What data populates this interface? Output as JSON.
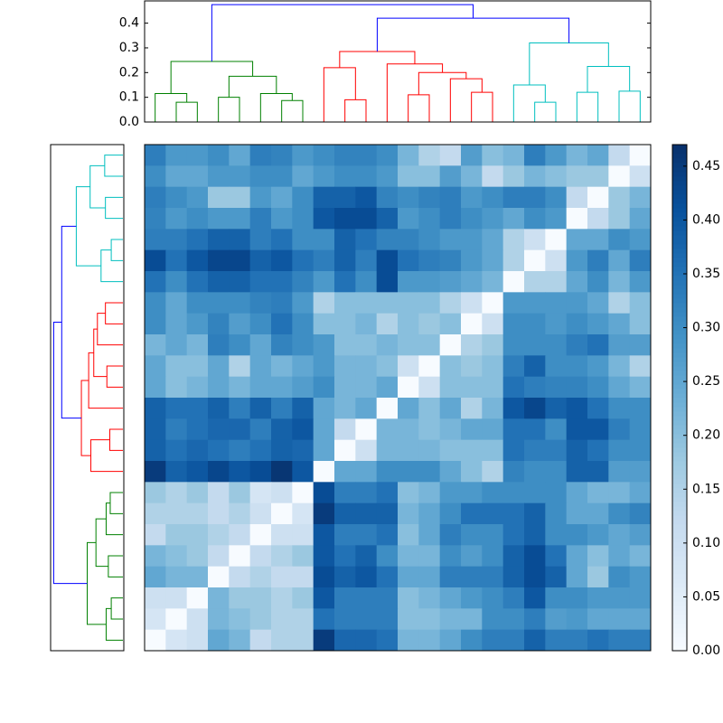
{
  "chart_data": {
    "type": "clustered-heatmap",
    "colormap": [
      "#f7fbff",
      "#deebf7",
      "#c6dbef",
      "#9ecae1",
      "#6baed6",
      "#4292c6",
      "#2171b5",
      "#08519c",
      "#08306b"
    ],
    "clim": [
      0,
      0.47
    ],
    "colorbar_ticks": [
      {
        "value": 0,
        "label": "0.00"
      },
      {
        "value": 0.05,
        "label": "0.05"
      },
      {
        "value": 0.1,
        "label": "0.10"
      },
      {
        "value": 0.15,
        "label": "0.15"
      },
      {
        "value": 0.2,
        "label": "0.20"
      },
      {
        "value": 0.25,
        "label": "0.25"
      },
      {
        "value": 0.3,
        "label": "0.30"
      },
      {
        "value": 0.35,
        "label": "0.35"
      },
      {
        "value": 0.4,
        "label": "0.40"
      },
      {
        "value": 0.45,
        "label": "0.45"
      }
    ],
    "dendrogram": {
      "ylim": [
        0,
        0.49
      ],
      "yticks": [
        {
          "value": 0,
          "label": "0.0"
        },
        {
          "value": 0.1,
          "label": "0.1"
        },
        {
          "value": 0.2,
          "label": "0.2"
        },
        {
          "value": 0.3,
          "label": "0.3"
        },
        {
          "value": 0.4,
          "label": "0.4"
        }
      ],
      "merges": [
        {
          "left": 1,
          "right": 2,
          "height": 0.08,
          "color": "#008000"
        },
        {
          "left": 0,
          "right": 24,
          "height": 0.115,
          "color": "#008000"
        },
        {
          "left": 3,
          "right": 4,
          "height": 0.1,
          "color": "#008000"
        },
        {
          "left": 6,
          "right": 7,
          "height": 0.087,
          "color": "#008000"
        },
        {
          "left": 5,
          "right": 27,
          "height": 0.115,
          "color": "#008000"
        },
        {
          "left": 26,
          "right": 28,
          "height": 0.185,
          "color": "#008000"
        },
        {
          "left": 25,
          "right": 29,
          "height": 0.245,
          "color": "#008000"
        },
        {
          "left": 9,
          "right": 10,
          "height": 0.09,
          "color": "#ff0000"
        },
        {
          "left": 8,
          "right": 31,
          "height": 0.22,
          "color": "#ff0000"
        },
        {
          "left": 12,
          "right": 13,
          "height": 0.11,
          "color": "#ff0000"
        },
        {
          "left": 15,
          "right": 16,
          "height": 0.12,
          "color": "#ff0000"
        },
        {
          "left": 14,
          "right": 34,
          "height": 0.175,
          "color": "#ff0000"
        },
        {
          "left": 33,
          "right": 35,
          "height": 0.2,
          "color": "#ff0000"
        },
        {
          "left": 11,
          "right": 36,
          "height": 0.235,
          "color": "#ff0000"
        },
        {
          "left": 32,
          "right": 37,
          "height": 0.285,
          "color": "#ff0000"
        },
        {
          "left": 18,
          "right": 19,
          "height": 0.08,
          "color": "#00bfbf"
        },
        {
          "left": 17,
          "right": 39,
          "height": 0.15,
          "color": "#00bfbf"
        },
        {
          "left": 20,
          "right": 21,
          "height": 0.12,
          "color": "#00bfbf"
        },
        {
          "left": 22,
          "right": 23,
          "height": 0.125,
          "color": "#00bfbf"
        },
        {
          "left": 41,
          "right": 42,
          "height": 0.225,
          "color": "#00bfbf"
        },
        {
          "left": 40,
          "right": 43,
          "height": 0.32,
          "color": "#00bfbf"
        },
        {
          "left": 38,
          "right": 44,
          "height": 0.42,
          "color": "#0000ff"
        },
        {
          "left": 30,
          "right": 45,
          "height": 0.475,
          "color": "#0000ff"
        }
      ]
    },
    "matrix": [
      [
        0.33,
        0.28,
        0.28,
        0.3,
        0.25,
        0.33,
        0.32,
        0.28,
        0.3,
        0.32,
        0.32,
        0.3,
        0.22,
        0.15,
        0.12,
        0.27,
        0.2,
        0.22,
        0.33,
        0.28,
        0.22,
        0.25,
        0.12,
        0
      ],
      [
        0.3,
        0.25,
        0.25,
        0.28,
        0.28,
        0.3,
        0.3,
        0.25,
        0.28,
        0.3,
        0.3,
        0.28,
        0.2,
        0.2,
        0.27,
        0.22,
        0.12,
        0.18,
        0.22,
        0.2,
        0.18,
        0.18,
        0,
        0.1
      ],
      [
        0.33,
        0.3,
        0.28,
        0.18,
        0.18,
        0.28,
        0.25,
        0.3,
        0.38,
        0.38,
        0.4,
        0.32,
        0.3,
        0.32,
        0.33,
        0.28,
        0.3,
        0.33,
        0.33,
        0.3,
        0.12,
        0,
        0.18,
        0.22
      ],
      [
        0.32,
        0.28,
        0.3,
        0.28,
        0.28,
        0.33,
        0.28,
        0.3,
        0.4,
        0.42,
        0.42,
        0.38,
        0.28,
        0.3,
        0.33,
        0.3,
        0.28,
        0.25,
        0.3,
        0.28,
        0,
        0.12,
        0.18,
        0.25
      ],
      [
        0.33,
        0.33,
        0.35,
        0.38,
        0.38,
        0.33,
        0.35,
        0.3,
        0.3,
        0.38,
        0.35,
        0.32,
        0.32,
        0.3,
        0.28,
        0.28,
        0.25,
        0.15,
        0.1,
        0,
        0.25,
        0.25,
        0.3,
        0.28
      ],
      [
        0.42,
        0.35,
        0.4,
        0.43,
        0.43,
        0.38,
        0.4,
        0.35,
        0.33,
        0.38,
        0.33,
        0.42,
        0.35,
        0.33,
        0.32,
        0.28,
        0.25,
        0.15,
        0,
        0.1,
        0.28,
        0.33,
        0.25,
        0.33
      ],
      [
        0.35,
        0.3,
        0.35,
        0.38,
        0.38,
        0.35,
        0.35,
        0.32,
        0.28,
        0.35,
        0.3,
        0.42,
        0.28,
        0.28,
        0.27,
        0.25,
        0.22,
        0,
        0.15,
        0.15,
        0.25,
        0.3,
        0.22,
        0.28
      ],
      [
        0.3,
        0.25,
        0.3,
        0.3,
        0.3,
        0.32,
        0.33,
        0.28,
        0.15,
        0.2,
        0.2,
        0.2,
        0.2,
        0.2,
        0.15,
        0.1,
        0,
        0.28,
        0.28,
        0.28,
        0.28,
        0.25,
        0.15,
        0.2
      ],
      [
        0.3,
        0.25,
        0.28,
        0.32,
        0.27,
        0.3,
        0.35,
        0.3,
        0.2,
        0.2,
        0.22,
        0.15,
        0.2,
        0.18,
        0.2,
        0,
        0.1,
        0.3,
        0.3,
        0.28,
        0.3,
        0.28,
        0.25,
        0.2
      ],
      [
        0.22,
        0.25,
        0.22,
        0.33,
        0.3,
        0.25,
        0.32,
        0.3,
        0.28,
        0.2,
        0.2,
        0.22,
        0.2,
        0.2,
        0,
        0.15,
        0.18,
        0.3,
        0.3,
        0.3,
        0.33,
        0.35,
        0.27,
        0.27
      ],
      [
        0.25,
        0.2,
        0.2,
        0.25,
        0.15,
        0.25,
        0.22,
        0.25,
        0.28,
        0.22,
        0.22,
        0.2,
        0.1,
        0,
        0.2,
        0.18,
        0.2,
        0.33,
        0.38,
        0.3,
        0.3,
        0.28,
        0.22,
        0.15
      ],
      [
        0.25,
        0.2,
        0.22,
        0.25,
        0.22,
        0.25,
        0.25,
        0.27,
        0.3,
        0.22,
        0.22,
        0.25,
        0,
        0.1,
        0.2,
        0.2,
        0.2,
        0.35,
        0.33,
        0.32,
        0.32,
        0.3,
        0.25,
        0.22
      ],
      [
        0.38,
        0.35,
        0.35,
        0.38,
        0.33,
        0.38,
        0.33,
        0.38,
        0.25,
        0.22,
        0.25,
        0,
        0.25,
        0.2,
        0.25,
        0.15,
        0.22,
        0.4,
        0.43,
        0.38,
        0.4,
        0.35,
        0.3,
        0.3
      ],
      [
        0.38,
        0.33,
        0.35,
        0.37,
        0.37,
        0.33,
        0.38,
        0.4,
        0.25,
        0.12,
        0,
        0.22,
        0.22,
        0.2,
        0.22,
        0.25,
        0.25,
        0.35,
        0.35,
        0.3,
        0.4,
        0.4,
        0.33,
        0.3
      ],
      [
        0.38,
        0.35,
        0.37,
        0.35,
        0.33,
        0.35,
        0.38,
        0.37,
        0.25,
        0,
        0.1,
        0.22,
        0.22,
        0.22,
        0.2,
        0.2,
        0.2,
        0.35,
        0.33,
        0.33,
        0.38,
        0.35,
        0.3,
        0.3
      ],
      [
        0.45,
        0.38,
        0.4,
        0.43,
        0.4,
        0.42,
        0.46,
        0.4,
        0,
        0.25,
        0.25,
        0.3,
        0.3,
        0.3,
        0.25,
        0.2,
        0.15,
        0.32,
        0.3,
        0.3,
        0.38,
        0.38,
        0.27,
        0.27
      ],
      [
        0.18,
        0.15,
        0.18,
        0.12,
        0.18,
        0.08,
        0.1,
        0,
        0.42,
        0.33,
        0.33,
        0.35,
        0.2,
        0.22,
        0.28,
        0.28,
        0.3,
        0.3,
        0.3,
        0.3,
        0.25,
        0.22,
        0.22,
        0.25
      ],
      [
        0.15,
        0.15,
        0.15,
        0.12,
        0.15,
        0.1,
        0,
        0.08,
        0.45,
        0.38,
        0.38,
        0.38,
        0.22,
        0.25,
        0.3,
        0.35,
        0.35,
        0.35,
        0.38,
        0.3,
        0.25,
        0.25,
        0.3,
        0.32
      ],
      [
        0.12,
        0.18,
        0.18,
        0.15,
        0.12,
        0,
        0.1,
        0.1,
        0.4,
        0.33,
        0.33,
        0.35,
        0.2,
        0.25,
        0.33,
        0.3,
        0.3,
        0.35,
        0.38,
        0.3,
        0.3,
        0.28,
        0.25,
        0.27
      ],
      [
        0.22,
        0.2,
        0.18,
        0.12,
        0,
        0.12,
        0.15,
        0.18,
        0.4,
        0.35,
        0.38,
        0.3,
        0.22,
        0.22,
        0.3,
        0.27,
        0.3,
        0.38,
        0.42,
        0.35,
        0.25,
        0.2,
        0.25,
        0.22
      ],
      [
        0.25,
        0.22,
        0.22,
        0,
        0.12,
        0.15,
        0.12,
        0.12,
        0.42,
        0.38,
        0.4,
        0.35,
        0.25,
        0.25,
        0.33,
        0.33,
        0.33,
        0.38,
        0.42,
        0.38,
        0.25,
        0.18,
        0.3,
        0.28
      ],
      [
        0.1,
        0.1,
        0,
        0.22,
        0.18,
        0.18,
        0.15,
        0.18,
        0.4,
        0.33,
        0.33,
        0.33,
        0.2,
        0.22,
        0.25,
        0.28,
        0.3,
        0.33,
        0.4,
        0.3,
        0.3,
        0.28,
        0.28,
        0.28
      ],
      [
        0.08,
        0,
        0.1,
        0.22,
        0.2,
        0.18,
        0.15,
        0.15,
        0.35,
        0.33,
        0.33,
        0.33,
        0.2,
        0.2,
        0.22,
        0.22,
        0.3,
        0.3,
        0.33,
        0.27,
        0.28,
        0.25,
        0.25,
        0.25
      ],
      [
        0,
        0.08,
        0.1,
        0.25,
        0.22,
        0.12,
        0.15,
        0.15,
        0.45,
        0.37,
        0.37,
        0.35,
        0.22,
        0.22,
        0.25,
        0.3,
        0.33,
        0.33,
        0.38,
        0.33,
        0.33,
        0.35,
        0.33,
        0.33
      ]
    ]
  }
}
